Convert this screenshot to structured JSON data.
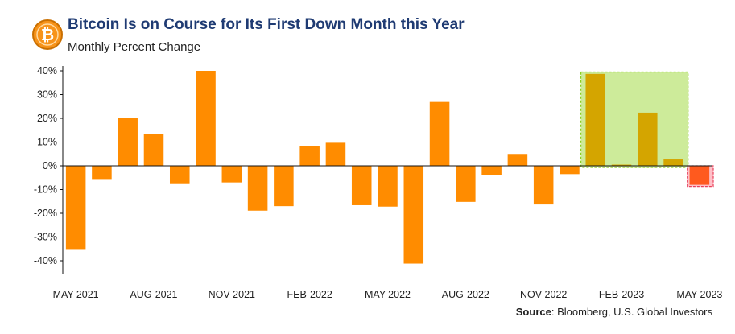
{
  "header": {
    "title": "Bitcoin Is on Course for Its First Down Month this Year",
    "subtitle": "Monthly Percent Change",
    "logo_glyph": "₿"
  },
  "footer": {
    "source_label": "Source",
    "source_text": ": Bloomberg, U.S. Global Investors"
  },
  "colors": {
    "bar": "#ff8c00",
    "highlight_bar": "#d4a500",
    "highlight_box_fill": "#cdeb9a",
    "highlight_box_border": "#8ccf1e",
    "negative_box_fill": "#ffc0c8",
    "negative_box_border": "#e8405a",
    "current_bar": "#ff5a1e",
    "title": "#1f3b73"
  },
  "chart_data": {
    "type": "bar",
    "title": "Bitcoin Is on Course for Its First Down Month this Year",
    "subtitle": "Monthly Percent Change",
    "categories": [
      "MAY-2021",
      "JUN-2021",
      "JUL-2021",
      "AUG-2021",
      "SEP-2021",
      "OCT-2021",
      "NOV-2021",
      "DEC-2021",
      "JAN-2022",
      "FEB-2022",
      "MAR-2022",
      "APR-2022",
      "MAY-2022",
      "JUN-2022",
      "JUL-2022",
      "AUG-2022",
      "SEP-2022",
      "OCT-2022",
      "NOV-2022",
      "DEC-2022",
      "JAN-2023",
      "FEB-2023",
      "MAR-2023",
      "APR-2023",
      "MAY-2023"
    ],
    "values": [
      -35.4,
      -5.9,
      20.0,
      13.3,
      -7.7,
      40.0,
      -7.0,
      -18.9,
      -17.0,
      8.3,
      9.7,
      -16.6,
      -17.2,
      -41.2,
      26.9,
      -15.2,
      -4.0,
      5.0,
      -16.3,
      -3.5,
      38.7,
      0.5,
      22.4,
      2.7,
      -8.0
    ],
    "x_tick_labels": [
      "MAY-2021",
      "AUG-2021",
      "NOV-2021",
      "FEB-2022",
      "MAY-2022",
      "AUG-2022",
      "NOV-2022",
      "FEB-2023",
      "MAY-2023"
    ],
    "y_ticks": [
      40,
      30,
      20,
      10,
      0,
      -10,
      -20,
      -30,
      -40
    ],
    "y_tick_labels": [
      "40%",
      "30%",
      "20%",
      "10%",
      "0%",
      "-10%",
      "-20%",
      "-30%",
      "-40%"
    ],
    "ylim": [
      -45,
      40
    ],
    "highlight_range": [
      "JAN-2023",
      "APR-2023"
    ],
    "current_month": "MAY-2023",
    "grid": false,
    "legend": "none"
  }
}
